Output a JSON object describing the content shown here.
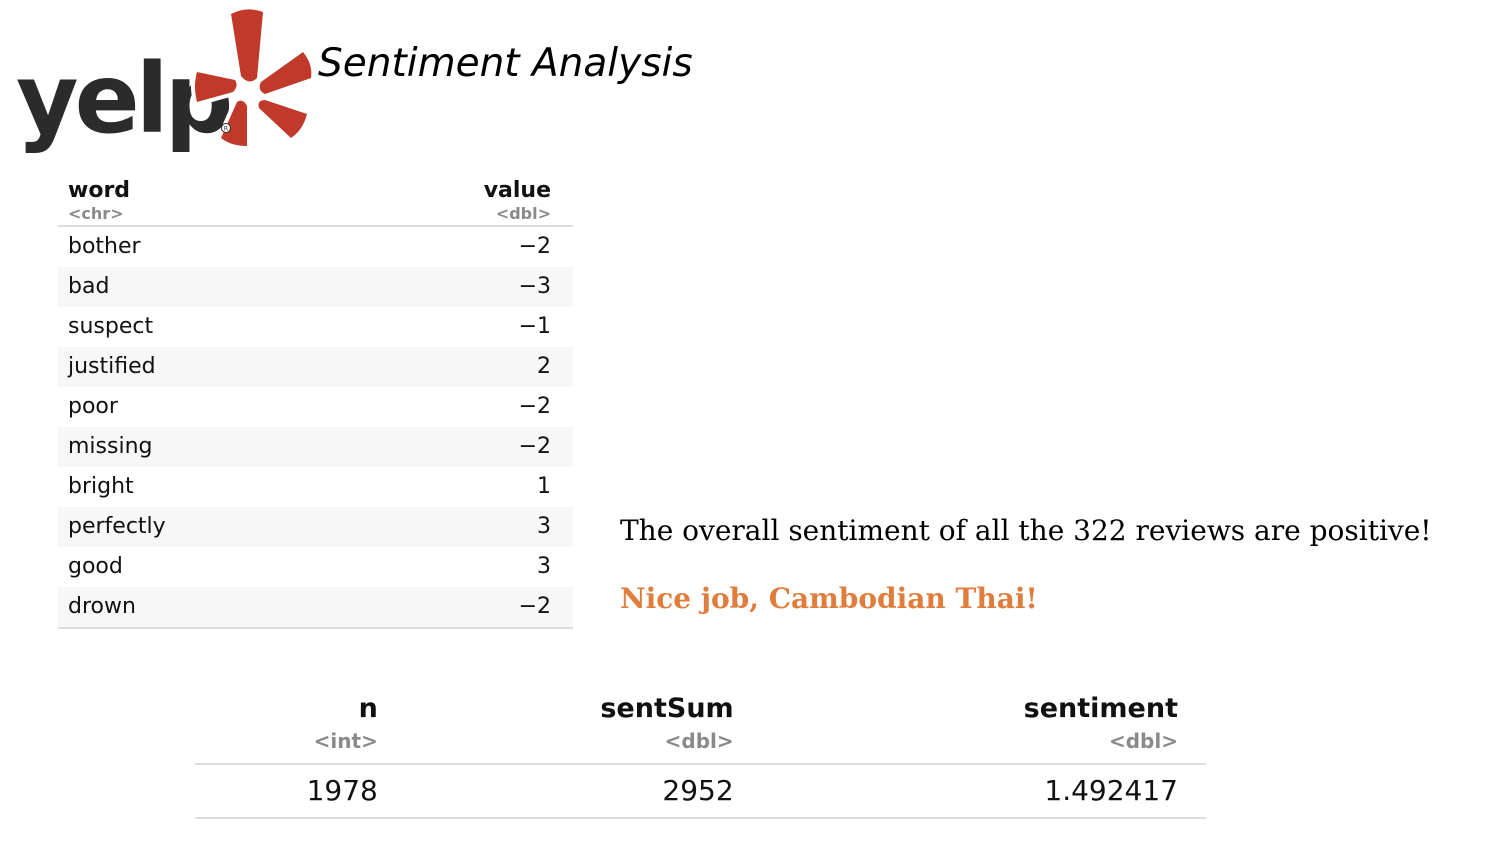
{
  "logo": {
    "text": "yelp",
    "colors": {
      "wordmark": "#2b2b2b",
      "burst": "#c0392b",
      "outline": "#ffffff"
    }
  },
  "title": "Sentiment Analysis",
  "word_table": {
    "columns": [
      {
        "name": "word",
        "type": "<chr>"
      },
      {
        "name": "value",
        "type": "<dbl>"
      }
    ],
    "rows": [
      {
        "word": "bother",
        "value": "-2"
      },
      {
        "word": "bad",
        "value": "-3"
      },
      {
        "word": "suspect",
        "value": "-1"
      },
      {
        "word": "justified",
        "value": "2"
      },
      {
        "word": "poor",
        "value": "-2"
      },
      {
        "word": "missing",
        "value": "-2"
      },
      {
        "word": "bright",
        "value": "1"
      },
      {
        "word": "perfectly",
        "value": "3"
      },
      {
        "word": "good",
        "value": "3"
      },
      {
        "word": "drown",
        "value": "-2"
      }
    ]
  },
  "conclusion": "The overall sentiment of all the 322 reviews are positive!",
  "praise": "Nice job, Cambodian Thai!",
  "praise_color": "#e07d3c",
  "summary_table": {
    "columns": [
      {
        "name": "n",
        "type": "<int>"
      },
      {
        "name": "sentSum",
        "type": "<dbl>"
      },
      {
        "name": "sentiment",
        "type": "<dbl>"
      }
    ],
    "row": {
      "n": "1978",
      "sentSum": "2952",
      "sentiment": "1.492417"
    }
  }
}
